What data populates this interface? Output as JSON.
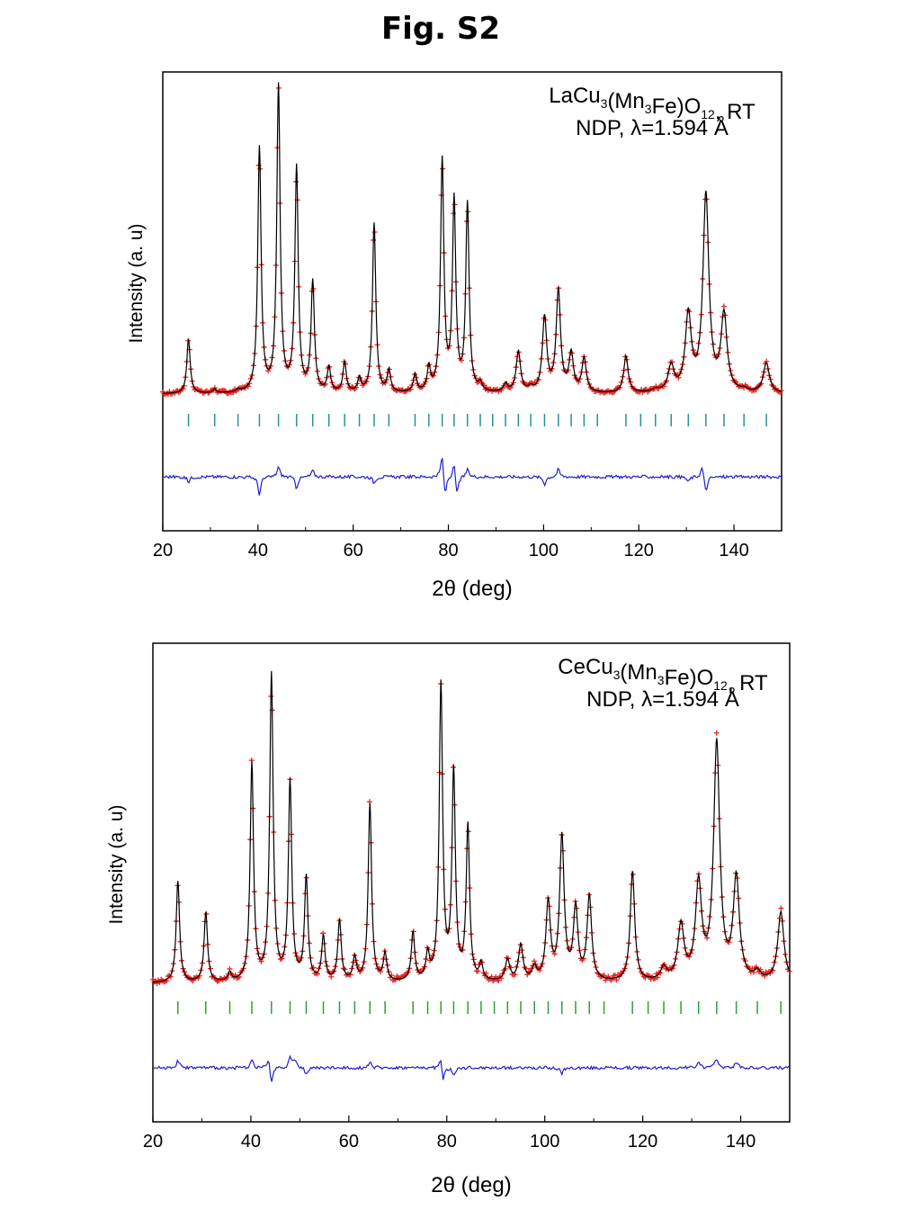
{
  "figure": {
    "title": "Fig. S2"
  },
  "chart_data": [
    {
      "type": "line",
      "annotation": {
        "line1": {
          "prefix": "LaCu",
          "sub1": "3",
          "mid1": "(Mn",
          "sub2": "3",
          "mid2": "Fe)O",
          "sub3": "12",
          "suffix": ", RT"
        },
        "line2": "NDP, λ=1.594 Å"
      },
      "xlabel": "2θ (deg)",
      "ylabel": "Intensity (a. u)",
      "xlim": [
        20,
        150
      ],
      "x_ticks": [
        20,
        40,
        60,
        80,
        100,
        120,
        140
      ],
      "grid": false,
      "background": 1.0,
      "observed_color": "#e8231f",
      "calculated_color": "#000000",
      "bragg_color": "#2a8fa0",
      "difference_color": "#1f1fd0",
      "peaks": [
        [
          25.4,
          4.0
        ],
        [
          30.9,
          0.3
        ],
        [
          35.8,
          0.2
        ],
        [
          40.3,
          18.0
        ],
        [
          44.3,
          22.5
        ],
        [
          48.1,
          16.5
        ],
        [
          51.5,
          8.1
        ],
        [
          54.9,
          1.8
        ],
        [
          58.2,
          2.2
        ],
        [
          61.3,
          1.0
        ],
        [
          64.4,
          12.5
        ],
        [
          67.5,
          1.6
        ],
        [
          73.0,
          1.3
        ],
        [
          75.9,
          1.7
        ],
        [
          78.7,
          17.0
        ],
        [
          81.2,
          14.0
        ],
        [
          84.0,
          13.8
        ],
        [
          86.7,
          0.6
        ],
        [
          92.0,
          0.6
        ],
        [
          94.7,
          3.0
        ],
        [
          97.3,
          0.3
        ],
        [
          100.2,
          5.5
        ],
        [
          103.1,
          7.5
        ],
        [
          105.8,
          2.8
        ],
        [
          108.5,
          2.5
        ],
        [
          117.3,
          2.7
        ],
        [
          123.5,
          0.2
        ],
        [
          126.8,
          1.9
        ],
        [
          130.4,
          5.6
        ],
        [
          134.1,
          14.5
        ],
        [
          137.9,
          5.6
        ],
        [
          142.1,
          0.2
        ],
        [
          146.8,
          2.2
        ]
      ],
      "bragg_positions": [
        25.4,
        30.9,
        35.8,
        40.3,
        44.3,
        48.1,
        51.5,
        54.9,
        58.2,
        61.3,
        64.4,
        67.5,
        73.0,
        75.9,
        78.7,
        81.2,
        84.0,
        86.7,
        89.3,
        92.0,
        94.7,
        97.3,
        100.2,
        103.1,
        105.8,
        108.5,
        111.3,
        117.3,
        120.4,
        123.5,
        126.8,
        130.4,
        134.1,
        137.9,
        142.1,
        146.8
      ],
      "difference_spikes": [
        [
          25.4,
          -0.4
        ],
        [
          40.3,
          -1.4
        ],
        [
          44.3,
          0.8
        ],
        [
          48.1,
          -0.9
        ],
        [
          51.5,
          0.5
        ],
        [
          64.4,
          -0.5
        ],
        [
          78.7,
          2.0
        ],
        [
          79.3,
          -1.8
        ],
        [
          81.2,
          1.2
        ],
        [
          81.8,
          -1.6
        ],
        [
          84.0,
          0.6
        ],
        [
          100.2,
          -0.6
        ],
        [
          103.1,
          0.6
        ],
        [
          134.1,
          -1.3
        ],
        [
          133.3,
          0.9
        ],
        [
          130.4,
          -0.4
        ]
      ]
    },
    {
      "type": "line",
      "annotation": {
        "line1": {
          "prefix": "CeCu",
          "sub1": "3",
          "mid1": "(Mn",
          "sub2": "3",
          "mid2": "Fe)O",
          "sub3": "12",
          "suffix": ", RT"
        },
        "line2": "NDP, λ=1.594 Å"
      },
      "xlabel": "2θ (deg)",
      "ylabel": "Intensity (a. u)",
      "xlim": [
        20,
        150
      ],
      "x_ticks": [
        20,
        40,
        60,
        80,
        100,
        120,
        140
      ],
      "grid": false,
      "background": 1.0,
      "observed_color": "#e8231f",
      "calculated_color": "#000000",
      "bragg_color": "#2e9e3a",
      "difference_color": "#1f1fd0",
      "peaks": [
        [
          25.1,
          4.8
        ],
        [
          30.8,
          3.3
        ],
        [
          35.7,
          0.4
        ],
        [
          40.2,
          10.3
        ],
        [
          44.2,
          14.5
        ],
        [
          48.0,
          9.4
        ],
        [
          51.3,
          4.9
        ],
        [
          54.8,
          2.1
        ],
        [
          58.1,
          2.9
        ],
        [
          61.2,
          1.1
        ],
        [
          64.3,
          8.4
        ],
        [
          67.4,
          1.3
        ],
        [
          73.1,
          2.3
        ],
        [
          76.1,
          1.2
        ],
        [
          78.8,
          14.0
        ],
        [
          81.4,
          9.8
        ],
        [
          84.3,
          7.3
        ],
        [
          87.0,
          0.8
        ],
        [
          92.4,
          1.0
        ],
        [
          95.1,
          1.7
        ],
        [
          97.9,
          0.6
        ],
        [
          100.7,
          3.7
        ],
        [
          103.5,
          6.8
        ],
        [
          106.3,
          3.4
        ],
        [
          109.1,
          4.0
        ],
        [
          117.9,
          5.2
        ],
        [
          124.3,
          0.6
        ],
        [
          127.8,
          2.6
        ],
        [
          131.4,
          4.5
        ],
        [
          135.1,
          11.2
        ],
        [
          139.1,
          4.8
        ],
        [
          143.4,
          0.4
        ],
        [
          148.2,
          3.3
        ]
      ],
      "bragg_positions": [
        25.1,
        30.8,
        35.7,
        40.2,
        44.2,
        48.0,
        51.3,
        54.8,
        58.1,
        61.2,
        64.3,
        67.4,
        73.1,
        76.1,
        78.8,
        81.4,
        84.3,
        87.0,
        89.7,
        92.4,
        95.1,
        97.9,
        100.7,
        103.5,
        106.3,
        109.1,
        112.1,
        117.9,
        121.1,
        124.3,
        127.8,
        131.4,
        135.1,
        139.1,
        143.4,
        148.2
      ],
      "difference_spikes": [
        [
          25.1,
          0.6
        ],
        [
          40.2,
          0.6
        ],
        [
          44.2,
          -1.3
        ],
        [
          43.6,
          0.9
        ],
        [
          48.0,
          0.9
        ],
        [
          49.0,
          0.6
        ],
        [
          51.3,
          -0.5
        ],
        [
          64.3,
          0.5
        ],
        [
          78.8,
          1.2
        ],
        [
          79.2,
          -1.4
        ],
        [
          81.4,
          -0.6
        ],
        [
          103.5,
          -0.5
        ],
        [
          131.4,
          0.5
        ],
        [
          135.1,
          0.8
        ],
        [
          139.1,
          0.5
        ]
      ]
    }
  ]
}
